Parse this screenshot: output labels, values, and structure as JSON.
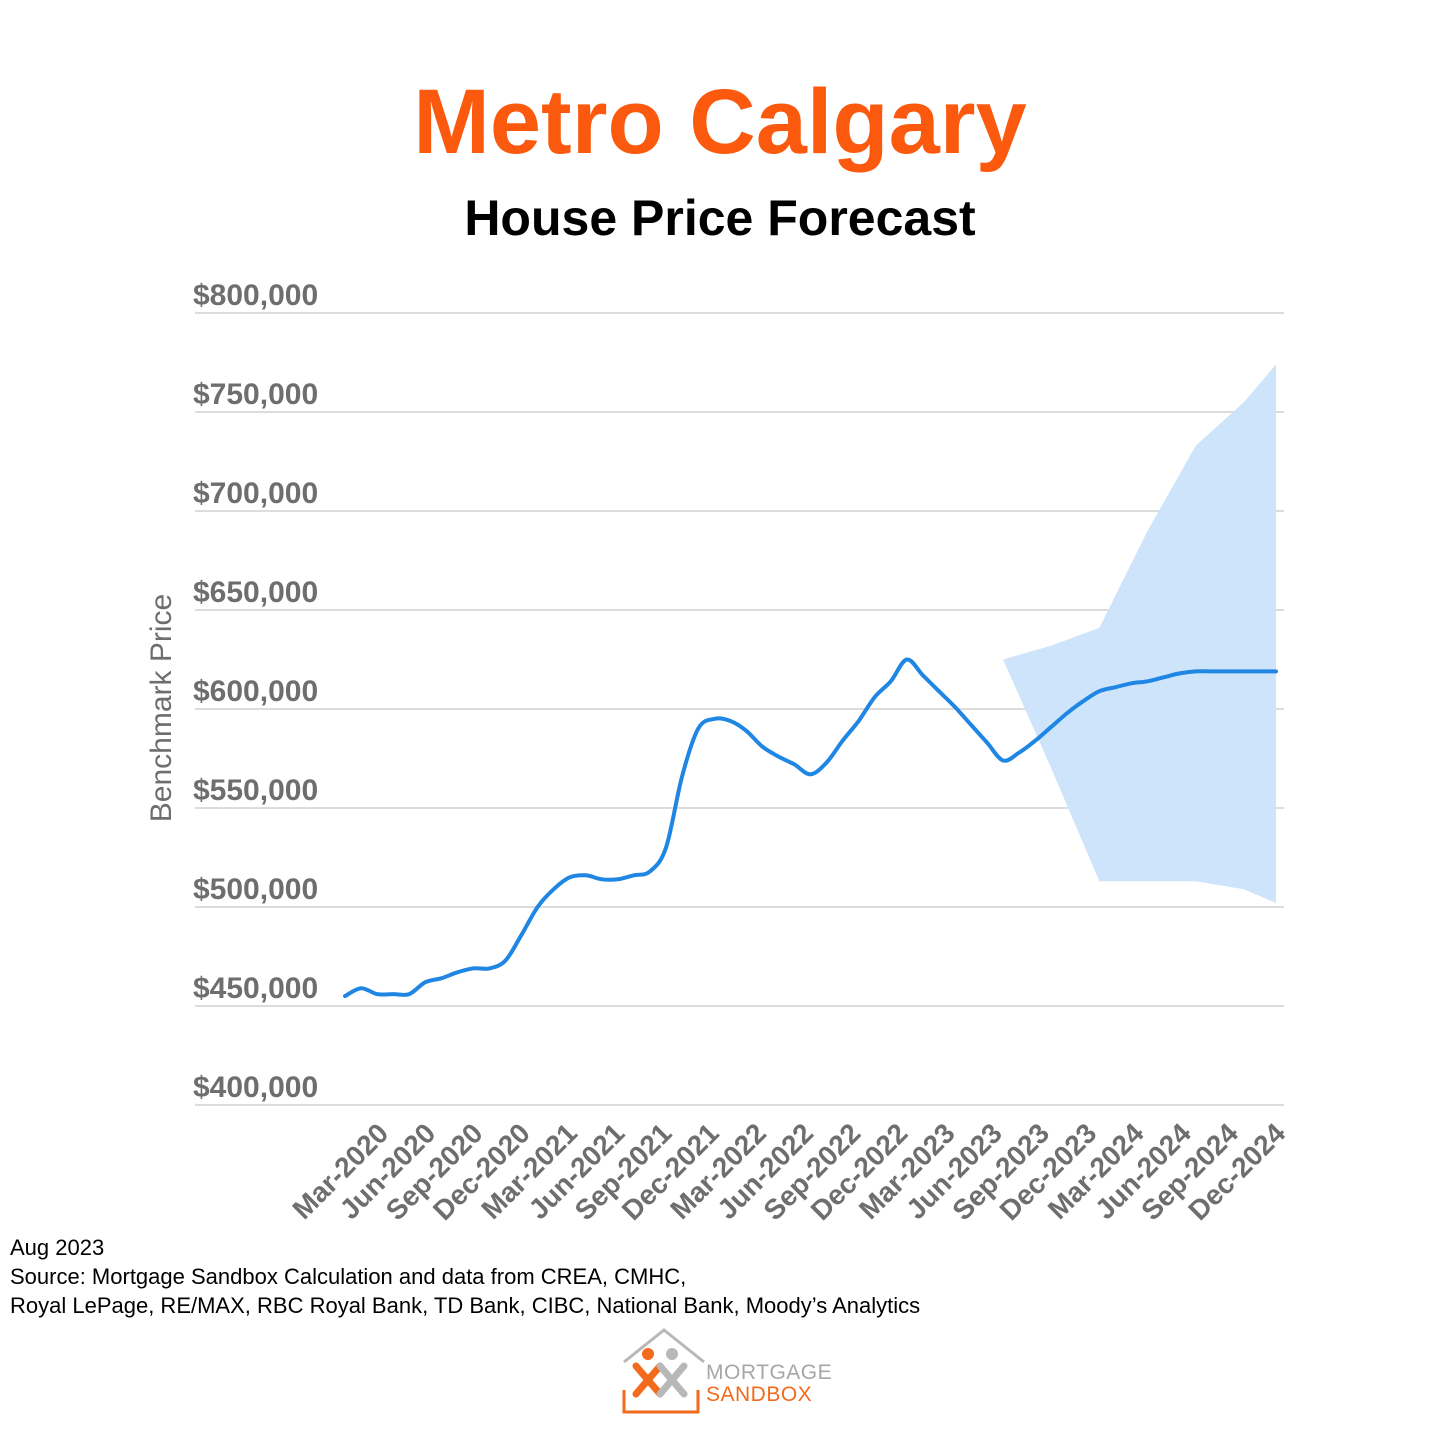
{
  "header": {
    "title": "Metro Calgary",
    "subtitle": "House Price Forecast"
  },
  "colors": {
    "title": "#fb5a0e",
    "line": "#1f86e4",
    "band": "#cde4fb",
    "grid": "#dcdcdc",
    "tick_text": "#6e6e6e"
  },
  "footer": {
    "date": "Aug 2023",
    "source_line1": "Source: Mortgage Sandbox Calculation and data from CREA, CMHC,",
    "source_line2": "Royal LePage, RE/MAX, RBC Royal Bank, TD Bank, CIBC, National Bank, Moody’s Analytics"
  },
  "logo": {
    "line1": "MORTGAGE",
    "line2": "SANDBOX"
  },
  "chart_data": {
    "type": "line",
    "ylabel": "Benchmark Price",
    "ylim": [
      400000,
      800000
    ],
    "yticks": [
      400000,
      450000,
      500000,
      550000,
      600000,
      650000,
      700000,
      750000,
      800000
    ],
    "ytick_labels": [
      "$400,000",
      "$450,000",
      "$500,000",
      "$550,000",
      "$600,000",
      "$650,000",
      "$700,000",
      "$750,000",
      "$800,000"
    ],
    "xtick_labels": [
      "Mar-2020",
      "Jun-2020",
      "Sep-2020",
      "Dec-2020",
      "Mar-2021",
      "Jun-2021",
      "Sep-2021",
      "Dec-2021",
      "Mar-2022",
      "Jun-2022",
      "Sep-2022",
      "Dec-2022",
      "Mar-2023",
      "Jun-2023",
      "Sep-2023",
      "Dec-2023",
      "Mar-2024",
      "Jun-2024",
      "Sep-2024",
      "Dec-2024"
    ],
    "grid": true,
    "series": [
      {
        "role": "actual-and-forecast",
        "x": [
          "2020-02",
          "2020-03",
          "2020-04",
          "2020-05",
          "2020-06",
          "2020-07",
          "2020-08",
          "2020-09",
          "2020-10",
          "2020-11",
          "2020-12",
          "2021-01",
          "2021-02",
          "2021-03",
          "2021-04",
          "2021-05",
          "2021-06",
          "2021-07",
          "2021-08",
          "2021-09",
          "2021-10",
          "2021-11",
          "2021-12",
          "2022-01",
          "2022-02",
          "2022-03",
          "2022-04",
          "2022-05",
          "2022-06",
          "2022-07",
          "2022-08",
          "2022-09",
          "2022-10",
          "2022-11",
          "2022-12",
          "2023-01",
          "2023-02",
          "2023-03",
          "2023-04",
          "2023-05",
          "2023-06",
          "2023-07",
          "2023-08",
          "2023-09",
          "2023-10",
          "2023-11",
          "2023-12",
          "2024-01",
          "2024-02",
          "2024-03",
          "2024-04",
          "2024-05",
          "2024-06",
          "2024-07",
          "2024-08",
          "2024-09",
          "2024-10",
          "2024-11",
          "2024-12"
        ],
        "values": [
          455000,
          459000,
          456000,
          456000,
          456000,
          462000,
          464000,
          467000,
          469000,
          469000,
          473000,
          486000,
          500000,
          509000,
          515000,
          516000,
          514000,
          514000,
          516000,
          518000,
          530000,
          566000,
          590000,
          595000,
          594000,
          589000,
          581000,
          576000,
          572000,
          567000,
          573000,
          584000,
          594000,
          606000,
          614000,
          625000,
          617000,
          609000,
          601000,
          592000,
          583000,
          574000,
          578000,
          584000,
          591000,
          598000,
          604000,
          609000,
          611000,
          613000,
          614000,
          616000,
          618000,
          619000,
          619000,
          619000,
          619000,
          619000,
          619000
        ]
      }
    ],
    "forecast_band": {
      "x": [
        "2023-07",
        "2023-10",
        "2024-01",
        "2024-04",
        "2024-07",
        "2024-10",
        "2024-12"
      ],
      "upper": [
        625000,
        632000,
        641000,
        690000,
        733000,
        755000,
        774000
      ],
      "lower": [
        625000,
        570000,
        513000,
        513000,
        513000,
        509000,
        502000
      ]
    }
  }
}
